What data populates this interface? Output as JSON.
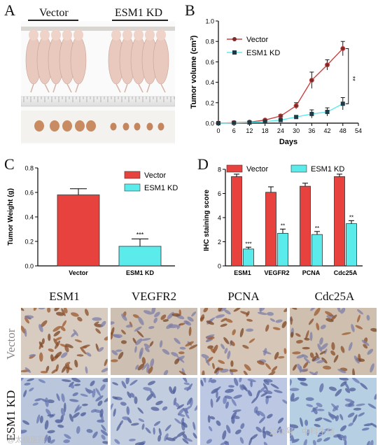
{
  "panels": {
    "A": {
      "letter": "A",
      "group_labels": [
        "Vector",
        "ESM1 KD"
      ]
    },
    "B": {
      "letter": "B"
    },
    "C": {
      "letter": "C"
    },
    "D": {
      "letter": "D"
    },
    "E": {
      "columns": [
        "ESM1",
        "VEGFR2",
        "PCNA",
        "Cdc25A"
      ],
      "rows": [
        "Vector",
        "ESM1 KD"
      ]
    }
  },
  "watermarks": {
    "left": "@太极医陈",
    "right": "公众号 · 中科生信"
  },
  "colors": {
    "vector_red": "#E8423E",
    "vector_line": "#C9413E",
    "kd_cyan": "#5CEBEB",
    "kd_marker": "#1F3A44"
  },
  "chart_data": [
    {
      "id": "B",
      "type": "line",
      "xlabel": "Days",
      "ylabel": "Tumor volume (cm³)",
      "x": [
        0,
        6,
        12,
        18,
        24,
        30,
        36,
        42,
        48
      ],
      "xticks": [
        0,
        6,
        12,
        18,
        24,
        30,
        36,
        42,
        48,
        54
      ],
      "yticks": [
        "0.0",
        "0.2",
        "0.4",
        "0.6",
        "0.8",
        "1.0"
      ],
      "xlim": [
        0,
        54
      ],
      "ylim": [
        0,
        1.0
      ],
      "series": [
        {
          "name": "Vector",
          "values": [
            0.0,
            0.005,
            0.01,
            0.03,
            0.07,
            0.17,
            0.42,
            0.57,
            0.73
          ],
          "errors": [
            0,
            0.003,
            0.005,
            0.01,
            0.015,
            0.03,
            0.08,
            0.05,
            0.07
          ]
        },
        {
          "name": "ESM1 KD",
          "values": [
            0.0,
            0.003,
            0.006,
            0.015,
            0.03,
            0.06,
            0.09,
            0.11,
            0.19
          ],
          "errors": [
            0,
            0.002,
            0.003,
            0.005,
            0.01,
            0.015,
            0.04,
            0.04,
            0.06
          ]
        }
      ],
      "annotation": "**",
      "legend_position": "top-left"
    },
    {
      "id": "C",
      "type": "bar",
      "ylabel": "Tumor Weight (g)",
      "categories": [
        "Vector",
        "ESM1 KD"
      ],
      "values": [
        0.58,
        0.16
      ],
      "errors": [
        0.05,
        0.06
      ],
      "yticks": [
        "0.0",
        "0.2",
        "0.4",
        "0.6",
        "0.8"
      ],
      "ylim": [
        0,
        0.8
      ],
      "annotation": "***",
      "legend": [
        "Vector",
        "ESM1 KD"
      ],
      "legend_position": "top-right"
    },
    {
      "id": "D",
      "type": "bar",
      "ylabel": "IHC staining score",
      "categories": [
        "ESM1",
        "VEGFR2",
        "PCNA",
        "Cdc25A"
      ],
      "series": [
        {
          "name": "Vector",
          "values": [
            7.4,
            6.1,
            6.6,
            7.4
          ],
          "errors": [
            0.2,
            0.45,
            0.25,
            0.2
          ]
        },
        {
          "name": "ESM1 KD",
          "values": [
            1.4,
            2.7,
            2.6,
            3.5
          ],
          "errors": [
            0.15,
            0.35,
            0.25,
            0.25
          ]
        }
      ],
      "annotations": [
        "***",
        "**",
        "**",
        "**"
      ],
      "yticks": [
        "0",
        "2",
        "4",
        "6",
        "8"
      ],
      "ylim": [
        0,
        8
      ],
      "legend_position": "top"
    }
  ]
}
